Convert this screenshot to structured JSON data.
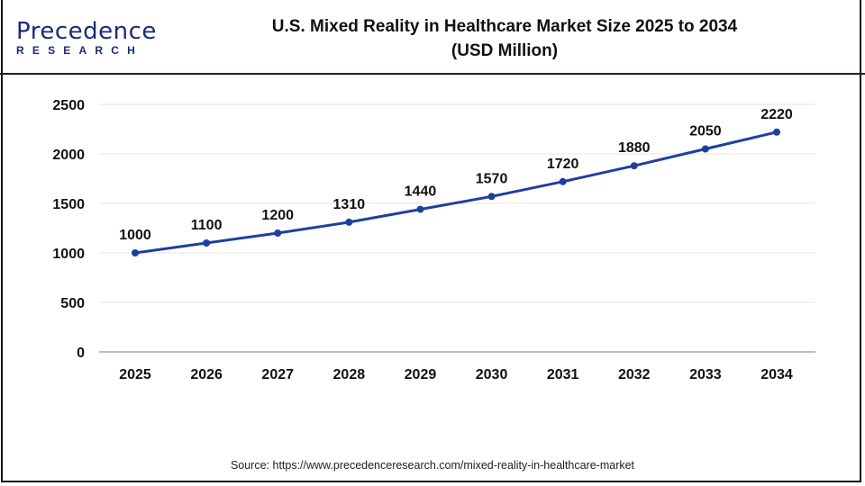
{
  "logo": {
    "main": "Precedence",
    "sub": "RESEARCH"
  },
  "title_lines": [
    "U.S. Mixed Reality in Healthcare Market Size 2025 to 2034",
    "(USD Million)"
  ],
  "source": "Source: https://www.precedenceresearch.com/mixed-reality-in-healthcare-market",
  "colors": {
    "line": "#1f3fa0",
    "header_rule": "#1a1f4a",
    "grid": "#e6e6e6"
  },
  "chart_data": {
    "type": "line",
    "title": "U.S. Mixed Reality in Healthcare Market Size 2025 to 2034 (USD Million)",
    "categories": [
      "2025",
      "2026",
      "2027",
      "2028",
      "2029",
      "2030",
      "2031",
      "2032",
      "2033",
      "2034"
    ],
    "values": [
      1000,
      1100,
      1200,
      1310,
      1440,
      1570,
      1720,
      1880,
      2050,
      2220
    ],
    "yticks": [
      0,
      500,
      1000,
      1500,
      2000,
      2500
    ],
    "ylim": [
      0,
      2500
    ],
    "grid": true,
    "data_labels": true,
    "xlabel": "",
    "ylabel": ""
  }
}
